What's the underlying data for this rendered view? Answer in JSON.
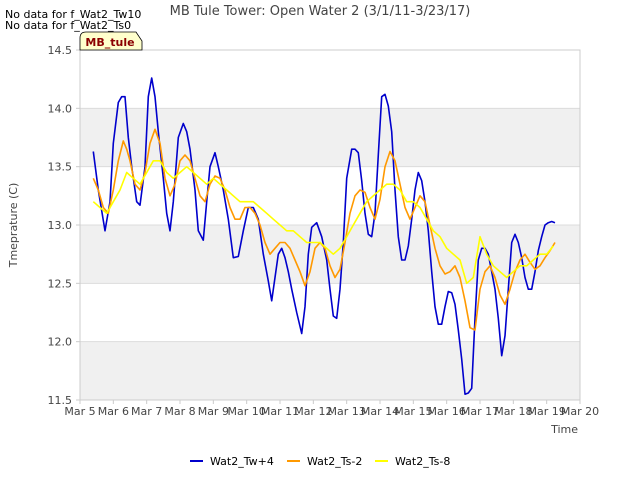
{
  "notices": [
    "No data for f_Wat2_Tw10",
    "No data for f_Wat2_Ts0"
  ],
  "site_label": "MB_tule",
  "colors": {
    "band": "#f0f0f0",
    "grid": "#dcdcdc",
    "axis": "#cccccc",
    "text": "#444444",
    "site_label_bg": "#ffffcc",
    "site_label_text": "#8b0000"
  },
  "chart_data": {
    "type": "line",
    "title": "MB Tule Tower: Open Water 2 (3/1/11-3/23/17)",
    "xlabel": "Time",
    "ylabel": "Tmeprature (C)",
    "xlim": [
      5,
      20
    ],
    "ylim": [
      11.5,
      14.5
    ],
    "xticks": [
      5,
      6,
      7,
      8,
      9,
      10,
      11,
      12,
      13,
      14,
      15,
      16,
      17,
      18,
      19,
      20
    ],
    "xtick_labels": [
      "Mar 5",
      "Mar 6",
      "Mar 7",
      "Mar 8",
      "Mar 9",
      "Mar 10",
      "Mar 11",
      "Mar 12",
      "Mar 13",
      "Mar 14",
      "Mar 15",
      "Mar 16",
      "Mar 17",
      "Mar 18",
      "Mar 19",
      "Mar 20"
    ],
    "yticks": [
      11.5,
      12.0,
      12.5,
      13.0,
      13.5,
      14.0,
      14.5
    ],
    "ytick_labels": [
      "11.5",
      "12.0",
      "12.5",
      "13.0",
      "13.5",
      "14.0",
      "14.5"
    ],
    "grid": true,
    "legend_position": "bottom-center",
    "series": [
      {
        "name": "Wat2_Tw+4",
        "color": "#0000cc",
        "x": [
          5.4,
          5.55,
          5.75,
          5.9,
          6.0,
          6.15,
          6.25,
          6.35,
          6.45,
          6.55,
          6.7,
          6.8,
          6.95,
          7.05,
          7.15,
          7.25,
          7.35,
          7.5,
          7.6,
          7.7,
          7.8,
          7.95,
          8.1,
          8.2,
          8.3,
          8.45,
          8.55,
          8.7,
          8.8,
          8.9,
          9.05,
          9.15,
          9.3,
          9.45,
          9.6,
          9.75,
          9.9,
          10.05,
          10.2,
          10.35,
          10.5,
          10.65,
          10.75,
          10.85,
          10.95,
          11.05,
          11.15,
          11.25,
          11.35,
          11.5,
          11.65,
          11.75,
          11.85,
          11.95,
          12.1,
          12.25,
          12.4,
          12.5,
          12.6,
          12.7,
          12.8,
          12.9,
          13.0,
          13.15,
          13.25,
          13.35,
          13.45,
          13.55,
          13.65,
          13.75,
          13.85,
          13.95,
          14.05,
          14.15,
          14.25,
          14.35,
          14.45,
          14.55,
          14.65,
          14.75,
          14.85,
          14.95,
          15.05,
          15.15,
          15.25,
          15.35,
          15.45,
          15.55,
          15.65,
          15.75,
          15.85,
          15.95,
          16.05,
          16.15,
          16.25,
          16.35,
          16.45,
          16.55,
          16.65,
          16.75,
          16.85,
          16.95,
          17.05,
          17.15,
          17.25,
          17.35,
          17.45,
          17.55,
          17.65,
          17.75,
          17.85,
          17.95,
          18.05,
          18.15,
          18.25,
          18.35,
          18.45,
          18.55,
          18.65,
          18.75,
          18.85,
          18.95,
          19.05,
          19.15,
          19.25
        ],
        "values": [
          13.63,
          13.3,
          12.95,
          13.2,
          13.7,
          14.05,
          14.1,
          14.1,
          13.75,
          13.5,
          13.2,
          13.17,
          13.5,
          14.1,
          14.26,
          14.1,
          13.8,
          13.4,
          13.1,
          12.95,
          13.2,
          13.75,
          13.87,
          13.8,
          13.65,
          13.3,
          12.95,
          12.87,
          13.2,
          13.5,
          13.62,
          13.5,
          13.3,
          13.05,
          12.72,
          12.73,
          12.95,
          13.15,
          13.15,
          13.05,
          12.75,
          12.52,
          12.35,
          12.55,
          12.75,
          12.8,
          12.72,
          12.6,
          12.45,
          12.25,
          12.07,
          12.3,
          12.75,
          12.98,
          13.02,
          12.9,
          12.7,
          12.45,
          12.22,
          12.2,
          12.45,
          12.85,
          13.4,
          13.65,
          13.65,
          13.62,
          13.38,
          13.1,
          12.92,
          12.9,
          13.1,
          13.6,
          14.1,
          14.12,
          14.02,
          13.8,
          13.3,
          12.9,
          12.7,
          12.7,
          12.82,
          13.05,
          13.3,
          13.45,
          13.38,
          13.2,
          12.95,
          12.6,
          12.3,
          12.15,
          12.15,
          12.3,
          12.43,
          12.42,
          12.32,
          12.1,
          11.85,
          11.55,
          11.56,
          11.6,
          12.2,
          12.7,
          12.8,
          12.8,
          12.75,
          12.6,
          12.45,
          12.2,
          11.88,
          12.05,
          12.45,
          12.85,
          12.92,
          12.85,
          12.72,
          12.55,
          12.45,
          12.45,
          12.6,
          12.78,
          12.9,
          13.0,
          13.02,
          13.03,
          13.02
        ]
      },
      {
        "name": "Wat2_Ts-2",
        "color": "#ff9900",
        "x": [
          5.4,
          5.55,
          5.7,
          5.85,
          6.0,
          6.15,
          6.3,
          6.4,
          6.5,
          6.65,
          6.8,
          6.95,
          7.1,
          7.25,
          7.4,
          7.55,
          7.7,
          7.85,
          8.0,
          8.15,
          8.3,
          8.45,
          8.6,
          8.75,
          8.9,
          9.05,
          9.2,
          9.35,
          9.5,
          9.65,
          9.8,
          9.95,
          10.1,
          10.25,
          10.4,
          10.55,
          10.7,
          10.85,
          11.0,
          11.15,
          11.3,
          11.45,
          11.6,
          11.75,
          11.9,
          12.05,
          12.2,
          12.35,
          12.5,
          12.65,
          12.8,
          12.95,
          13.1,
          13.25,
          13.4,
          13.55,
          13.7,
          13.85,
          14.0,
          14.15,
          14.3,
          14.45,
          14.6,
          14.75,
          14.9,
          15.05,
          15.2,
          15.35,
          15.5,
          15.65,
          15.8,
          15.95,
          16.1,
          16.25,
          16.4,
          16.55,
          16.7,
          16.85,
          17.0,
          17.15,
          17.3,
          17.45,
          17.6,
          17.75,
          17.9,
          18.05,
          18.2,
          18.35,
          18.5,
          18.65,
          18.8,
          18.95,
          19.1,
          19.25
        ],
        "values": [
          13.4,
          13.3,
          13.15,
          13.1,
          13.3,
          13.55,
          13.72,
          13.65,
          13.55,
          13.35,
          13.3,
          13.45,
          13.7,
          13.82,
          13.7,
          13.4,
          13.25,
          13.35,
          13.55,
          13.6,
          13.55,
          13.4,
          13.25,
          13.2,
          13.35,
          13.42,
          13.4,
          13.3,
          13.15,
          13.05,
          13.05,
          13.15,
          13.15,
          13.1,
          13.0,
          12.85,
          12.75,
          12.8,
          12.85,
          12.85,
          12.8,
          12.7,
          12.6,
          12.48,
          12.6,
          12.8,
          12.85,
          12.8,
          12.65,
          12.55,
          12.62,
          12.85,
          13.1,
          13.25,
          13.3,
          13.28,
          13.15,
          13.05,
          13.22,
          13.5,
          13.63,
          13.55,
          13.35,
          13.15,
          13.05,
          13.15,
          13.25,
          13.2,
          13.0,
          12.8,
          12.65,
          12.58,
          12.6,
          12.65,
          12.55,
          12.35,
          12.12,
          12.1,
          12.45,
          12.6,
          12.65,
          12.55,
          12.4,
          12.32,
          12.45,
          12.6,
          12.7,
          12.75,
          12.68,
          12.62,
          12.65,
          12.72,
          12.78,
          12.85
        ]
      },
      {
        "name": "Wat2_Ts-8",
        "color": "#ffff00",
        "x": [
          5.4,
          5.6,
          5.8,
          6.0,
          6.2,
          6.4,
          6.6,
          6.8,
          7.0,
          7.2,
          7.4,
          7.6,
          7.8,
          8.0,
          8.2,
          8.4,
          8.6,
          8.8,
          9.0,
          9.2,
          9.4,
          9.6,
          9.8,
          10.0,
          10.2,
          10.4,
          10.6,
          10.8,
          11.0,
          11.2,
          11.4,
          11.6,
          11.8,
          12.0,
          12.2,
          12.4,
          12.6,
          12.8,
          13.0,
          13.2,
          13.4,
          13.6,
          13.8,
          14.0,
          14.2,
          14.4,
          14.6,
          14.8,
          15.0,
          15.2,
          15.4,
          15.6,
          15.8,
          16.0,
          16.2,
          16.4,
          16.6,
          16.8,
          17.0,
          17.2,
          17.4,
          17.6,
          17.8,
          18.0,
          18.2,
          18.4,
          18.6,
          18.8,
          19.0,
          19.2
        ],
        "values": [
          13.2,
          13.15,
          13.1,
          13.2,
          13.3,
          13.45,
          13.4,
          13.35,
          13.45,
          13.55,
          13.55,
          13.45,
          13.4,
          13.45,
          13.5,
          13.45,
          13.4,
          13.35,
          13.4,
          13.35,
          13.3,
          13.25,
          13.2,
          13.2,
          13.2,
          13.15,
          13.1,
          13.05,
          13.0,
          12.95,
          12.95,
          12.9,
          12.85,
          12.85,
          12.85,
          12.8,
          12.75,
          12.8,
          12.9,
          13.0,
          13.1,
          13.2,
          13.25,
          13.3,
          13.35,
          13.35,
          13.3,
          13.2,
          13.2,
          13.15,
          13.05,
          12.95,
          12.9,
          12.8,
          12.75,
          12.7,
          12.5,
          12.55,
          12.9,
          12.75,
          12.65,
          12.6,
          12.55,
          12.6,
          12.65,
          12.65,
          12.7,
          12.75,
          12.75,
          12.82
        ]
      }
    ]
  }
}
